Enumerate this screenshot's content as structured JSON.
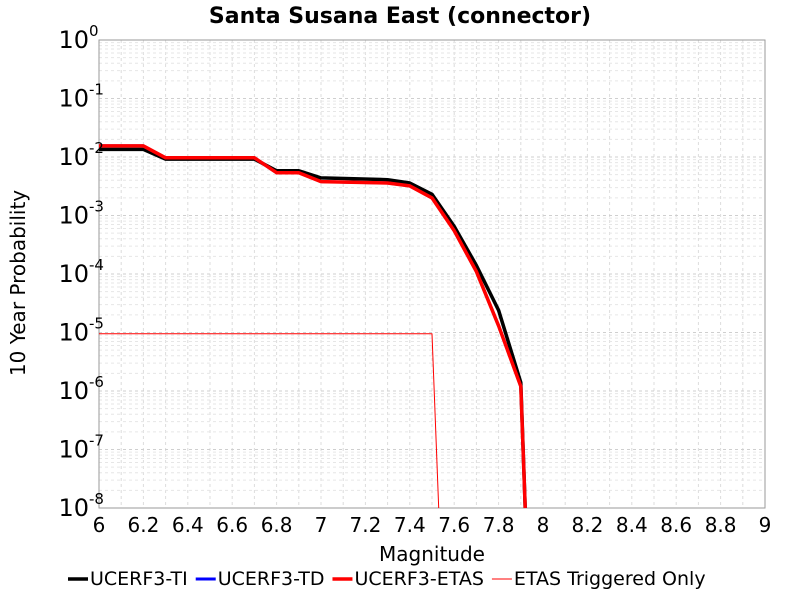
{
  "chart_data": {
    "type": "line",
    "title": "Santa Susana East (connector)",
    "xlabel": "Magnitude",
    "ylabel": "10 Year Probability",
    "xlim": [
      6,
      9
    ],
    "ylim": [
      1e-08,
      1
    ],
    "yscale": "log",
    "grid": true,
    "legend_position": "bottom",
    "x_ticks": [
      "6",
      "6.2",
      "6.4",
      "6.6",
      "6.8",
      "7",
      "7.2",
      "7.4",
      "7.6",
      "7.8",
      "8",
      "8.2",
      "8.4",
      "8.6",
      "8.8",
      "9"
    ],
    "y_ticks": [
      {
        "base": "10",
        "exp": "0"
      },
      {
        "base": "10",
        "exp": "-1"
      },
      {
        "base": "10",
        "exp": "-2"
      },
      {
        "base": "10",
        "exp": "-3"
      },
      {
        "base": "10",
        "exp": "-4"
      },
      {
        "base": "10",
        "exp": "-5"
      },
      {
        "base": "10",
        "exp": "-6"
      },
      {
        "base": "10",
        "exp": "-7"
      },
      {
        "base": "10",
        "exp": "-8"
      }
    ],
    "series": [
      {
        "name": "UCERF3-TI",
        "color": "#000000",
        "width": 3.5,
        "x": [
          6.0,
          6.2,
          6.3,
          6.7,
          6.8,
          6.9,
          7.0,
          7.3,
          7.4,
          7.5,
          7.6,
          7.7,
          7.8,
          7.9,
          7.92
        ],
        "y": [
          0.0135,
          0.0135,
          0.0092,
          0.0092,
          0.0058,
          0.0058,
          0.0044,
          0.0041,
          0.0036,
          0.0023,
          0.00065,
          0.00014,
          2.4e-05,
          1.4e-06,
          1e-08
        ]
      },
      {
        "name": "UCERF3-TD",
        "color": "#0000ff",
        "width": 3,
        "x": [
          6.0,
          6.2,
          6.3,
          6.7,
          6.8,
          6.9,
          7.0,
          7.3,
          7.4,
          7.5,
          7.6,
          7.7,
          7.8,
          7.9,
          7.92
        ],
        "y": [
          0.0155,
          0.0155,
          0.0097,
          0.0097,
          0.0054,
          0.0054,
          0.0038,
          0.0036,
          0.0032,
          0.002,
          0.00055,
          0.00011,
          1.3e-05,
          1.2e-06,
          1e-08
        ]
      },
      {
        "name": "UCERF3-ETAS",
        "color": "#ff0000",
        "width": 3.5,
        "x": [
          6.0,
          6.2,
          6.3,
          6.7,
          6.8,
          6.9,
          7.0,
          7.3,
          7.4,
          7.5,
          7.6,
          7.7,
          7.8,
          7.9,
          7.92
        ],
        "y": [
          0.0155,
          0.0155,
          0.0097,
          0.0097,
          0.0054,
          0.0054,
          0.0038,
          0.0036,
          0.0032,
          0.002,
          0.00055,
          0.00011,
          1.3e-05,
          1.2e-06,
          1e-08
        ]
      },
      {
        "name": "ETAS Triggered Only",
        "color": "#ff0000",
        "width": 1,
        "x": [
          6.0,
          7.5,
          7.53
        ],
        "y": [
          9.5e-06,
          9.5e-06,
          1e-08
        ]
      }
    ]
  }
}
